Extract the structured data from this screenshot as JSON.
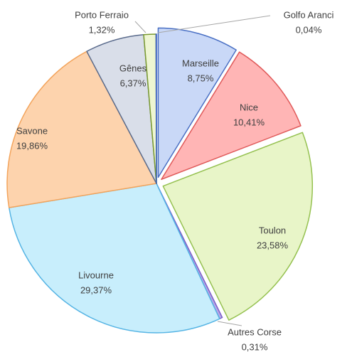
{
  "chart_data": {
    "type": "pie",
    "categories": [
      "Marseille",
      "Nice",
      "Toulon",
      "Autres Corse",
      "Livourne",
      "Savone",
      "Gênes",
      "Porto Ferraio",
      "Golfo Aranci"
    ],
    "values": [
      8.75,
      10.41,
      23.58,
      0.31,
      29.37,
      19.86,
      6.37,
      1.32,
      0.04
    ],
    "value_labels": [
      "8,75%",
      "10,41%",
      "23,58%",
      "0,31%",
      "29,37%",
      "19,86%",
      "6,37%",
      "1,32%",
      "0,04%"
    ],
    "colors": [
      "#c9d8f7",
      "#ffb5b5",
      "#e8f5c8",
      "#b9a8e8",
      "#c8eefc",
      "#fdd3ad",
      "#d9dee9",
      "#eef6d2",
      "#7fa0e0"
    ],
    "stroke_colors": [
      "#4a70c4",
      "#e05a5a",
      "#95c150",
      "#7a60c8",
      "#55b4e4",
      "#f3a45c",
      "#5a6b8c",
      "#7a9a30",
      "#3a60c0"
    ]
  }
}
